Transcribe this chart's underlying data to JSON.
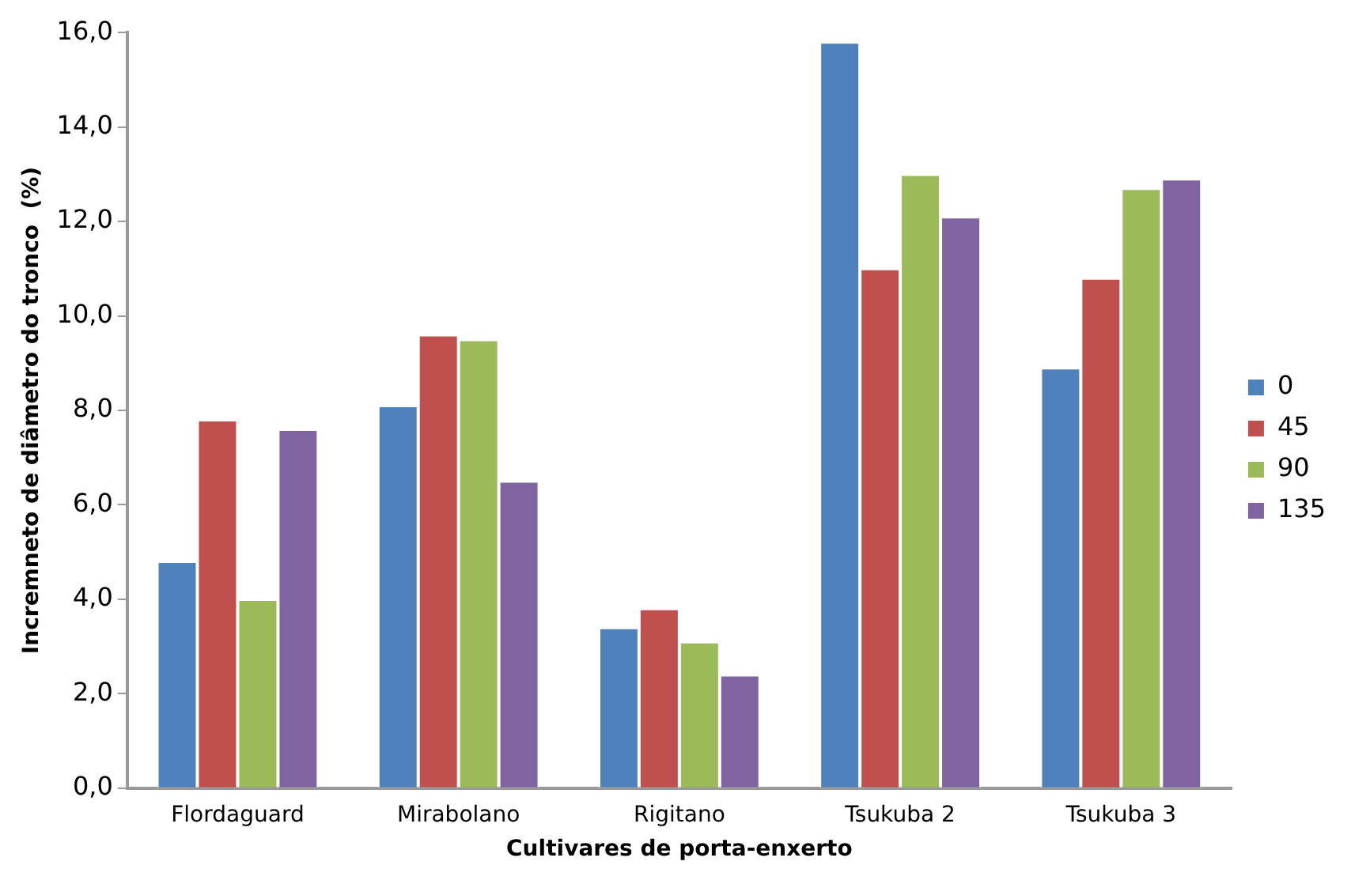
{
  "chart_data": {
    "type": "bar",
    "xlabel": "Cultivares de porta-enxerto",
    "ylabel": "Incremneto de diâmetro do tronco  (%)",
    "categories": [
      "Flordaguard",
      "Mirabolano",
      "Rigitano",
      "Tsukuba 2",
      "Tsukuba 3"
    ],
    "series": [
      {
        "name": "0",
        "color": "#4f81bd",
        "values": [
          4.8,
          8.1,
          3.4,
          15.8,
          8.9
        ]
      },
      {
        "name": "45",
        "color": "#c0504d",
        "values": [
          7.8,
          9.6,
          3.8,
          11.0,
          10.8
        ]
      },
      {
        "name": "90",
        "color": "#9bbb59",
        "values": [
          4.0,
          9.5,
          3.1,
          13.0,
          12.7
        ]
      },
      {
        "name": "135",
        "color": "#8064a2",
        "values": [
          7.6,
          6.5,
          2.4,
          12.1,
          12.9
        ]
      }
    ],
    "ylim": [
      0,
      16
    ],
    "yticks": [
      {
        "value": 0,
        "label": "0,0"
      },
      {
        "value": 2,
        "label": "2,0"
      },
      {
        "value": 4,
        "label": "4,0"
      },
      {
        "value": 6,
        "label": "6,0"
      },
      {
        "value": 8,
        "label": "8,0"
      },
      {
        "value": 10,
        "label": "10,0"
      },
      {
        "value": 12,
        "label": "12,0"
      },
      {
        "value": 14,
        "label": "14,0"
      },
      {
        "value": 16,
        "label": "16,0"
      }
    ],
    "grid": false,
    "legend": "right"
  }
}
